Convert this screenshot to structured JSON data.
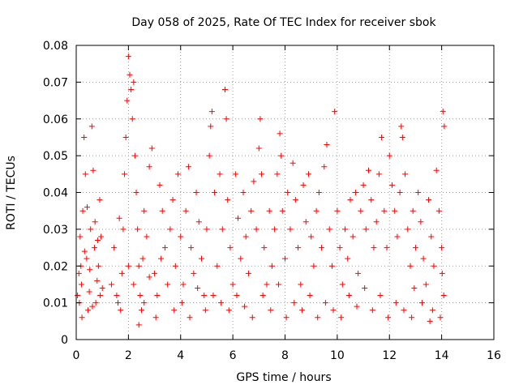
{
  "chart_data": {
    "type": "scatter",
    "title": "Day 058 of 2025, Rate Of TEC Index for receiver sbok",
    "xlabel": "GPS time / hours",
    "ylabel": "ROTI / TECUs",
    "xlim": [
      0,
      16
    ],
    "ylim": [
      0,
      0.08
    ],
    "xticks": [
      0,
      2,
      4,
      6,
      8,
      10,
      12,
      14,
      16
    ],
    "xtick_labels": [
      "0",
      "2",
      "4",
      "6",
      "8",
      "10",
      "12",
      "14",
      "16"
    ],
    "yticks": [
      0,
      0.01,
      0.02,
      0.03,
      0.04,
      0.05,
      0.06,
      0.07,
      0.08
    ],
    "ytick_labels": [
      "0",
      "0.01",
      "0.02",
      "0.03",
      "0.04",
      "0.05",
      "0.06",
      "0.07",
      "0.08"
    ],
    "grid": true,
    "marker": "+",
    "marker_color": "#ff0000",
    "series": [
      {
        "name": "ROTI",
        "points": [
          [
            0.05,
            0.012
          ],
          [
            0.1,
            0.018
          ],
          [
            0.15,
            0.028
          ],
          [
            0.2,
            0.015
          ],
          [
            0.25,
            0.035
          ],
          [
            0.3,
            0.055
          ],
          [
            0.35,
            0.045
          ],
          [
            0.4,
            0.022
          ],
          [
            0.45,
            0.008
          ],
          [
            0.5,
            0.013
          ],
          [
            0.55,
            0.03
          ],
          [
            0.6,
            0.058
          ],
          [
            0.65,
            0.046
          ],
          [
            0.7,
            0.025
          ],
          [
            0.75,
            0.01
          ],
          [
            0.8,
            0.016
          ],
          [
            0.85,
            0.02
          ],
          [
            0.9,
            0.038
          ],
          [
            0.95,
            0.028
          ],
          [
            1.0,
            0.014
          ],
          [
            0.12,
            0.01
          ],
          [
            0.22,
            0.006
          ],
          [
            0.32,
            0.024
          ],
          [
            0.42,
            0.036
          ],
          [
            0.52,
            0.019
          ],
          [
            0.62,
            0.009
          ],
          [
            0.72,
            0.032
          ],
          [
            0.82,
            0.027
          ],
          [
            0.92,
            0.012
          ],
          [
            0.18,
            0.02
          ],
          [
            1.35,
            0.015
          ],
          [
            1.45,
            0.025
          ],
          [
            1.55,
            0.012
          ],
          [
            1.65,
            0.033
          ],
          [
            1.75,
            0.018
          ],
          [
            1.85,
            0.045
          ],
          [
            1.9,
            0.055
          ],
          [
            1.95,
            0.065
          ],
          [
            2.0,
            0.077
          ],
          [
            2.05,
            0.072
          ],
          [
            2.1,
            0.068
          ],
          [
            2.15,
            0.06
          ],
          [
            2.2,
            0.07
          ],
          [
            2.25,
            0.05
          ],
          [
            2.3,
            0.04
          ],
          [
            2.35,
            0.03
          ],
          [
            2.4,
            0.02
          ],
          [
            2.45,
            0.012
          ],
          [
            2.5,
            0.008
          ],
          [
            2.55,
            0.022
          ],
          [
            2.6,
            0.035
          ],
          [
            2.7,
            0.028
          ],
          [
            2.8,
            0.047
          ],
          [
            2.9,
            0.052
          ],
          [
            3.0,
            0.018
          ],
          [
            3.1,
            0.012
          ],
          [
            3.2,
            0.042
          ],
          [
            3.3,
            0.035
          ],
          [
            3.4,
            0.025
          ],
          [
            3.5,
            0.015
          ],
          [
            1.6,
            0.01
          ],
          [
            1.7,
            0.008
          ],
          [
            1.8,
            0.03
          ],
          [
            2.0,
            0.02
          ],
          [
            2.2,
            0.015
          ],
          [
            2.4,
            0.004
          ],
          [
            2.6,
            0.01
          ],
          [
            2.8,
            0.017
          ],
          [
            3.05,
            0.006
          ],
          [
            3.25,
            0.022
          ],
          [
            3.6,
            0.03
          ],
          [
            3.7,
            0.038
          ],
          [
            3.8,
            0.02
          ],
          [
            3.9,
            0.045
          ],
          [
            4.0,
            0.028
          ],
          [
            4.1,
            0.015
          ],
          [
            4.2,
            0.035
          ],
          [
            4.3,
            0.047
          ],
          [
            4.4,
            0.025
          ],
          [
            4.5,
            0.018
          ],
          [
            4.6,
            0.04
          ],
          [
            4.7,
            0.032
          ],
          [
            4.8,
            0.022
          ],
          [
            4.9,
            0.012
          ],
          [
            5.0,
            0.03
          ],
          [
            5.1,
            0.05
          ],
          [
            5.15,
            0.058
          ],
          [
            5.2,
            0.062
          ],
          [
            5.3,
            0.04
          ],
          [
            5.4,
            0.02
          ],
          [
            5.5,
            0.045
          ],
          [
            5.6,
            0.03
          ],
          [
            5.7,
            0.068
          ],
          [
            5.75,
            0.06
          ],
          [
            5.8,
            0.038
          ],
          [
            5.9,
            0.025
          ],
          [
            6.0,
            0.015
          ],
          [
            6.1,
            0.045
          ],
          [
            6.2,
            0.033
          ],
          [
            6.3,
            0.022
          ],
          [
            3.75,
            0.008
          ],
          [
            4.05,
            0.01
          ],
          [
            4.35,
            0.006
          ],
          [
            4.65,
            0.014
          ],
          [
            4.95,
            0.008
          ],
          [
            5.25,
            0.012
          ],
          [
            5.55,
            0.01
          ],
          [
            5.85,
            0.008
          ],
          [
            6.15,
            0.012
          ],
          [
            6.45,
            0.009
          ],
          [
            6.4,
            0.04
          ],
          [
            6.5,
            0.028
          ],
          [
            6.6,
            0.018
          ],
          [
            6.7,
            0.035
          ],
          [
            6.8,
            0.043
          ],
          [
            6.9,
            0.03
          ],
          [
            7.0,
            0.052
          ],
          [
            7.05,
            0.06
          ],
          [
            7.1,
            0.045
          ],
          [
            7.2,
            0.025
          ],
          [
            7.3,
            0.015
          ],
          [
            7.4,
            0.035
          ],
          [
            7.5,
            0.02
          ],
          [
            7.6,
            0.03
          ],
          [
            7.7,
            0.045
          ],
          [
            7.8,
            0.056
          ],
          [
            7.85,
            0.05
          ],
          [
            7.9,
            0.035
          ],
          [
            8.0,
            0.022
          ],
          [
            8.1,
            0.04
          ],
          [
            8.2,
            0.03
          ],
          [
            8.3,
            0.048
          ],
          [
            8.4,
            0.038
          ],
          [
            8.5,
            0.025
          ],
          [
            8.6,
            0.015
          ],
          [
            8.7,
            0.042
          ],
          [
            8.8,
            0.032
          ],
          [
            8.9,
            0.045
          ],
          [
            9.0,
            0.028
          ],
          [
            9.1,
            0.02
          ],
          [
            6.75,
            0.006
          ],
          [
            7.15,
            0.012
          ],
          [
            7.45,
            0.008
          ],
          [
            7.75,
            0.015
          ],
          [
            8.05,
            0.006
          ],
          [
            8.35,
            0.01
          ],
          [
            8.65,
            0.008
          ],
          [
            8.95,
            0.012
          ],
          [
            9.25,
            0.006
          ],
          [
            9.55,
            0.01
          ],
          [
            9.2,
            0.035
          ],
          [
            9.3,
            0.04
          ],
          [
            9.4,
            0.025
          ],
          [
            9.5,
            0.047
          ],
          [
            9.6,
            0.053
          ],
          [
            9.7,
            0.03
          ],
          [
            9.8,
            0.02
          ],
          [
            9.9,
            0.062
          ],
          [
            10.0,
            0.035
          ],
          [
            10.1,
            0.025
          ],
          [
            10.2,
            0.015
          ],
          [
            10.3,
            0.03
          ],
          [
            10.4,
            0.022
          ],
          [
            10.5,
            0.038
          ],
          [
            10.6,
            0.028
          ],
          [
            10.7,
            0.04
          ],
          [
            10.8,
            0.018
          ],
          [
            10.9,
            0.035
          ],
          [
            11.0,
            0.042
          ],
          [
            11.1,
            0.03
          ],
          [
            11.2,
            0.046
          ],
          [
            11.3,
            0.038
          ],
          [
            11.4,
            0.025
          ],
          [
            11.5,
            0.032
          ],
          [
            11.6,
            0.045
          ],
          [
            11.7,
            0.055
          ],
          [
            11.8,
            0.035
          ],
          [
            11.9,
            0.025
          ],
          [
            12.0,
            0.05
          ],
          [
            12.1,
            0.042
          ],
          [
            9.85,
            0.008
          ],
          [
            10.15,
            0.006
          ],
          [
            10.45,
            0.012
          ],
          [
            10.75,
            0.009
          ],
          [
            11.05,
            0.014
          ],
          [
            11.35,
            0.008
          ],
          [
            11.65,
            0.012
          ],
          [
            11.95,
            0.006
          ],
          [
            12.25,
            0.01
          ],
          [
            12.55,
            0.008
          ],
          [
            12.2,
            0.035
          ],
          [
            12.3,
            0.028
          ],
          [
            12.4,
            0.04
          ],
          [
            12.45,
            0.058
          ],
          [
            12.5,
            0.055
          ],
          [
            12.6,
            0.045
          ],
          [
            12.7,
            0.03
          ],
          [
            12.8,
            0.02
          ],
          [
            12.9,
            0.035
          ],
          [
            13.0,
            0.025
          ],
          [
            13.1,
            0.04
          ],
          [
            13.2,
            0.032
          ],
          [
            13.3,
            0.022
          ],
          [
            13.4,
            0.015
          ],
          [
            13.5,
            0.038
          ],
          [
            13.6,
            0.028
          ],
          [
            13.7,
            0.02
          ],
          [
            13.8,
            0.046
          ],
          [
            13.9,
            0.035
          ],
          [
            14.0,
            0.025
          ],
          [
            14.05,
            0.062
          ],
          [
            14.1,
            0.058
          ],
          [
            13.65,
            0.008
          ],
          [
            13.95,
            0.006
          ],
          [
            14.08,
            0.012
          ],
          [
            12.85,
            0.006
          ],
          [
            13.25,
            0.01
          ],
          [
            13.55,
            0.005
          ],
          [
            12.95,
            0.014
          ],
          [
            14.02,
            0.018
          ]
        ]
      }
    ]
  }
}
